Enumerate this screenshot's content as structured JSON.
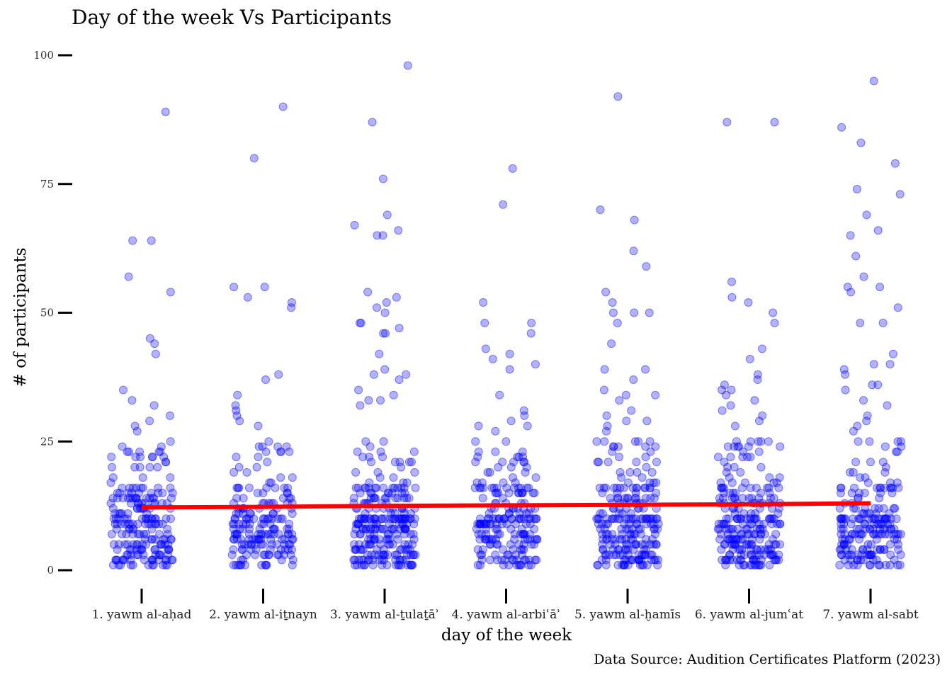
{
  "chart_data": {
    "type": "scatter",
    "title": "Day of the week Vs Participants",
    "xlabel": "day of the week",
    "ylabel": "# of participants",
    "caption": "Data Source: Audition Certificates Platform (2023)",
    "categories": [
      "1. yawm al-aḥad",
      "2. yawm al-iṯnayn",
      "3. yawm al-ṯulaṯāʾ",
      "4. yawm al-arbiʿāʾ",
      "5. yawm al-ḫamīs",
      "6. yawm al-jumʿat",
      "7. yawm al-sabt"
    ],
    "ylim": [
      0,
      100
    ],
    "yticks": [
      0,
      25,
      50,
      75,
      100
    ],
    "grid": false,
    "point_color": "#0000ff",
    "point_opacity": 0.3,
    "trend_color": "#ff0000",
    "trend": [
      12.2,
      12.3,
      12.5,
      12.6,
      12.7,
      12.8,
      13.0
    ],
    "outliers": [
      [
        89,
        64,
        64,
        57,
        54,
        45,
        44,
        42,
        35,
        33,
        32,
        30,
        29,
        28,
        27
      ],
      [
        90,
        80,
        55,
        55,
        53,
        52,
        51,
        38,
        37,
        34,
        32,
        31,
        30,
        29,
        28
      ],
      [
        98,
        87,
        76,
        69,
        67,
        66,
        65,
        65,
        54,
        53,
        52,
        51,
        50,
        48,
        48,
        47,
        46,
        46,
        42,
        39,
        38,
        38,
        37,
        35,
        34,
        33,
        33,
        32
      ],
      [
        78,
        71,
        52,
        48,
        48,
        46,
        43,
        42,
        41,
        40,
        39,
        34,
        31,
        30,
        29,
        28,
        28,
        27
      ],
      [
        92,
        70,
        68,
        62,
        59,
        54,
        52,
        50,
        50,
        50,
        48,
        44,
        39,
        39,
        37,
        35,
        34,
        34,
        33,
        31,
        30,
        29,
        29,
        28,
        27
      ],
      [
        87,
        87,
        56,
        53,
        52,
        50,
        48,
        43,
        41,
        38,
        37,
        36,
        35,
        35,
        34,
        33,
        32,
        31,
        30,
        29,
        28
      ],
      [
        95,
        86,
        83,
        79,
        74,
        73,
        69,
        66,
        65,
        61,
        57,
        55,
        55,
        54,
        51,
        48,
        48,
        42,
        40,
        40,
        39,
        38,
        36,
        36,
        35,
        33,
        32,
        30,
        29,
        28,
        27
      ]
    ],
    "dense_counts": [
      200,
      175,
      240,
      190,
      220,
      225,
      190
    ]
  }
}
